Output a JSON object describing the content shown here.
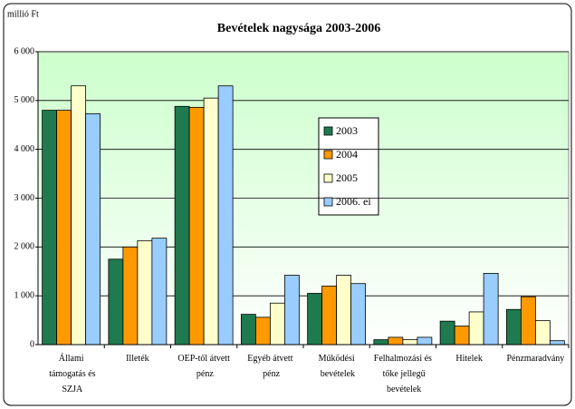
{
  "chart_data": {
    "type": "bar",
    "title": "Bevételek nagysága 2003-2006",
    "y_label": "millió Ft",
    "categories": [
      "Állami támogatás és SZJA",
      "Illeték",
      "OEP-től átvett pénz",
      "Egyéb átvett pénz",
      "Működési bevételek",
      "Felhalmozási és tőke jellegű bevételek",
      "Hitelek",
      "Pénzmaradvány"
    ],
    "series": [
      {
        "name": "2003",
        "color": "#1f7a4f",
        "values": [
          4800,
          1750,
          4880,
          620,
          1050,
          100,
          480,
          720
        ]
      },
      {
        "name": "2004",
        "color": "#ff9900",
        "values": [
          4800,
          2000,
          4860,
          560,
          1200,
          150,
          380,
          980
        ]
      },
      {
        "name": "2005",
        "color": "#ffffcc",
        "values": [
          5300,
          2130,
          5050,
          850,
          1420,
          100,
          670,
          490
        ]
      },
      {
        "name": "2006. ei",
        "color": "#99ccff",
        "values": [
          4730,
          2180,
          5300,
          1420,
          1250,
          150,
          1460,
          80
        ]
      }
    ],
    "ylim": [
      0,
      6000
    ],
    "yticks": [
      0,
      {
        "value": 1000,
        "label": "1 000"
      },
      {
        "value": 2000,
        "label": "2 000"
      },
      {
        "value": 3000,
        "label": "3 000"
      },
      {
        "value": 4000,
        "label": "4 000"
      },
      {
        "value": 5000,
        "label": "5 000"
      },
      {
        "value": 6000,
        "label": "6 000"
      }
    ],
    "grid": true
  }
}
